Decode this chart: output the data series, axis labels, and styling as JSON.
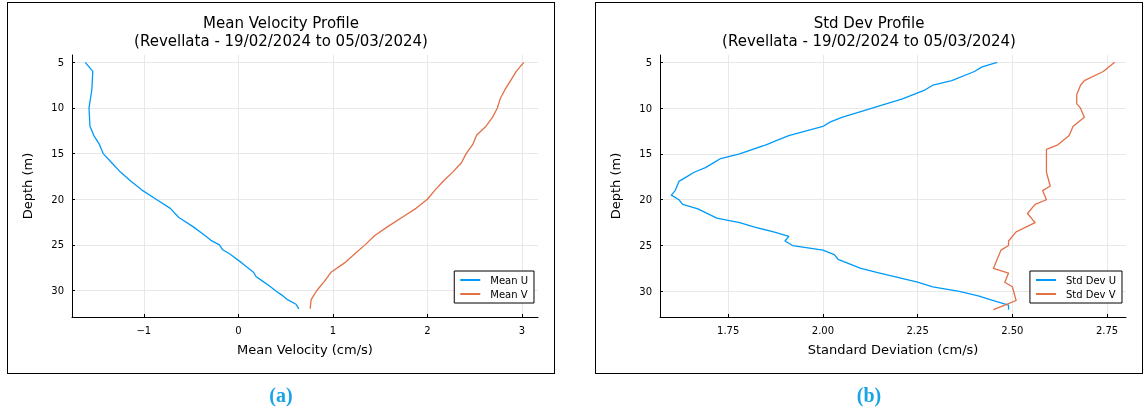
{
  "chart_data": [
    {
      "type": "line",
      "title": "Mean Velocity Profile\n(Revellata - 19/02/2024 to 05/03/2024)",
      "xlabel": "Mean Velocity (cm/s)",
      "ylabel": "Depth (m)",
      "xlim": [
        -1.76,
        3.17
      ],
      "xticks": [
        {
          "value": -1,
          "label": "−1"
        },
        0,
        1,
        2,
        3
      ],
      "ylim": [
        32.9,
        4.2
      ],
      "yticks": [
        5,
        10,
        15,
        20,
        25,
        30
      ],
      "grid": true,
      "legend": "bottom right",
      "annotations": [
        "(a)"
      ],
      "series": [
        {
          "name": "Mean U",
          "color": "#009af9",
          "x": [
            -1.62,
            -1.54,
            -1.55,
            -1.565,
            -1.58,
            -1.57,
            -1.53,
            -1.47,
            -1.43,
            -1.34,
            -1.25,
            -1.14,
            -1.02,
            -0.87,
            -0.72,
            -0.63,
            -0.48,
            -0.35,
            -0.29,
            -0.2,
            -0.17,
            -0.09,
            0.04,
            0.16,
            0.19,
            0.26,
            0.33,
            0.39,
            0.46,
            0.52,
            0.61,
            0.64
          ],
          "values": [
            5,
            6,
            8,
            9,
            10,
            12,
            13,
            14,
            15,
            16,
            17,
            18,
            19,
            20,
            21,
            22,
            23,
            24,
            24.5,
            25,
            25.5,
            26,
            27,
            28,
            28.5,
            29,
            29.5,
            30,
            30.5,
            31,
            31.5,
            32
          ]
        },
        {
          "name": "Mean V",
          "color": "#e26f46",
          "x": [
            3.02,
            2.94,
            2.88,
            2.82,
            2.77,
            2.74,
            2.69,
            2.62,
            2.52,
            2.48,
            2.41,
            2.36,
            2.27,
            2.17,
            2.08,
            2.0,
            1.88,
            1.73,
            1.58,
            1.44,
            1.34,
            1.23,
            1.12,
            0.98,
            0.91,
            0.83,
            0.77,
            0.76
          ],
          "values": [
            5,
            6,
            7,
            8,
            9,
            10,
            11,
            12,
            13,
            14,
            15,
            16,
            17,
            18,
            19,
            20,
            21,
            22,
            23,
            24,
            25,
            26,
            27,
            28,
            29,
            30,
            31,
            32
          ]
        }
      ]
    },
    {
      "type": "line",
      "title": "Std Dev Profile\n(Revellata - 19/02/2024 to 05/03/2024)",
      "xlabel": "Standard Deviation (cm/s)",
      "ylabel": "Depth (m)",
      "xlim": [
        1.57,
        2.8
      ],
      "xticks": [
        {
          "value": 1.75,
          "label": "1.75"
        },
        {
          "value": 2,
          "label": "2.00"
        },
        {
          "value": 2.25,
          "label": "2.25"
        },
        {
          "value": 2.5,
          "label": "2.50"
        },
        {
          "value": 2.75,
          "label": "2.75"
        }
      ],
      "ylim": [
        32.8,
        4.2
      ],
      "yticks": [
        5,
        10,
        15,
        20,
        25,
        30
      ],
      "grid": true,
      "legend": "bottom right",
      "annotations": [
        "(b)"
      ],
      "series": [
        {
          "name": "Std Dev U",
          "color": "#009af9",
          "x": [
            2.46,
            2.42,
            2.4,
            2.34,
            2.29,
            2.27,
            2.21,
            2.13,
            2.05,
            2.02,
            2.0,
            1.91,
            1.88,
            1.85,
            1.78,
            1.73,
            1.71,
            1.69,
            1.66,
            1.64,
            1.62,
            1.61,
            1.6,
            1.62,
            1.63,
            1.67,
            1.72,
            1.78,
            1.82,
            1.87,
            1.91,
            1.9,
            1.92,
            2.0,
            2.03,
            2.04,
            2.07,
            2.1,
            2.15,
            2.2,
            2.25,
            2.29,
            2.36,
            2.41,
            2.45,
            2.49,
            2.49
          ],
          "values": [
            5,
            5.5,
            6,
            7,
            7.5,
            8,
            9,
            10,
            11,
            11.5,
            12,
            13,
            13.5,
            14,
            15,
            15.5,
            16,
            16.5,
            17,
            17.5,
            18,
            19,
            19.5,
            20,
            20.5,
            21,
            22,
            22.5,
            23,
            23.5,
            24,
            24.5,
            25,
            25.5,
            26,
            26.5,
            27,
            27.5,
            28,
            28.5,
            29,
            29.5,
            30,
            30.5,
            31,
            31.5,
            32
          ]
        },
        {
          "name": "Std Dev V",
          "color": "#e26f46",
          "x": [
            2.77,
            2.74,
            2.69,
            2.68,
            2.67,
            2.67,
            2.68,
            2.69,
            2.66,
            2.65,
            2.62,
            2.59,
            2.59,
            2.59,
            2.6,
            2.58,
            2.59,
            2.56,
            2.54,
            2.56,
            2.51,
            2.49,
            2.49,
            2.47,
            2.46,
            2.45,
            2.49,
            2.48,
            2.5,
            2.51,
            2.48,
            2.45
          ],
          "values": [
            5,
            6,
            7,
            7.5,
            8.5,
            9.5,
            10,
            11,
            12,
            13,
            14,
            14.5,
            16,
            17,
            18.5,
            19,
            20,
            20.5,
            21.5,
            22.5,
            23.5,
            24.5,
            25,
            25.5,
            26.5,
            27.5,
            28,
            29,
            29.5,
            31,
            31.5,
            32
          ]
        }
      ]
    }
  ]
}
